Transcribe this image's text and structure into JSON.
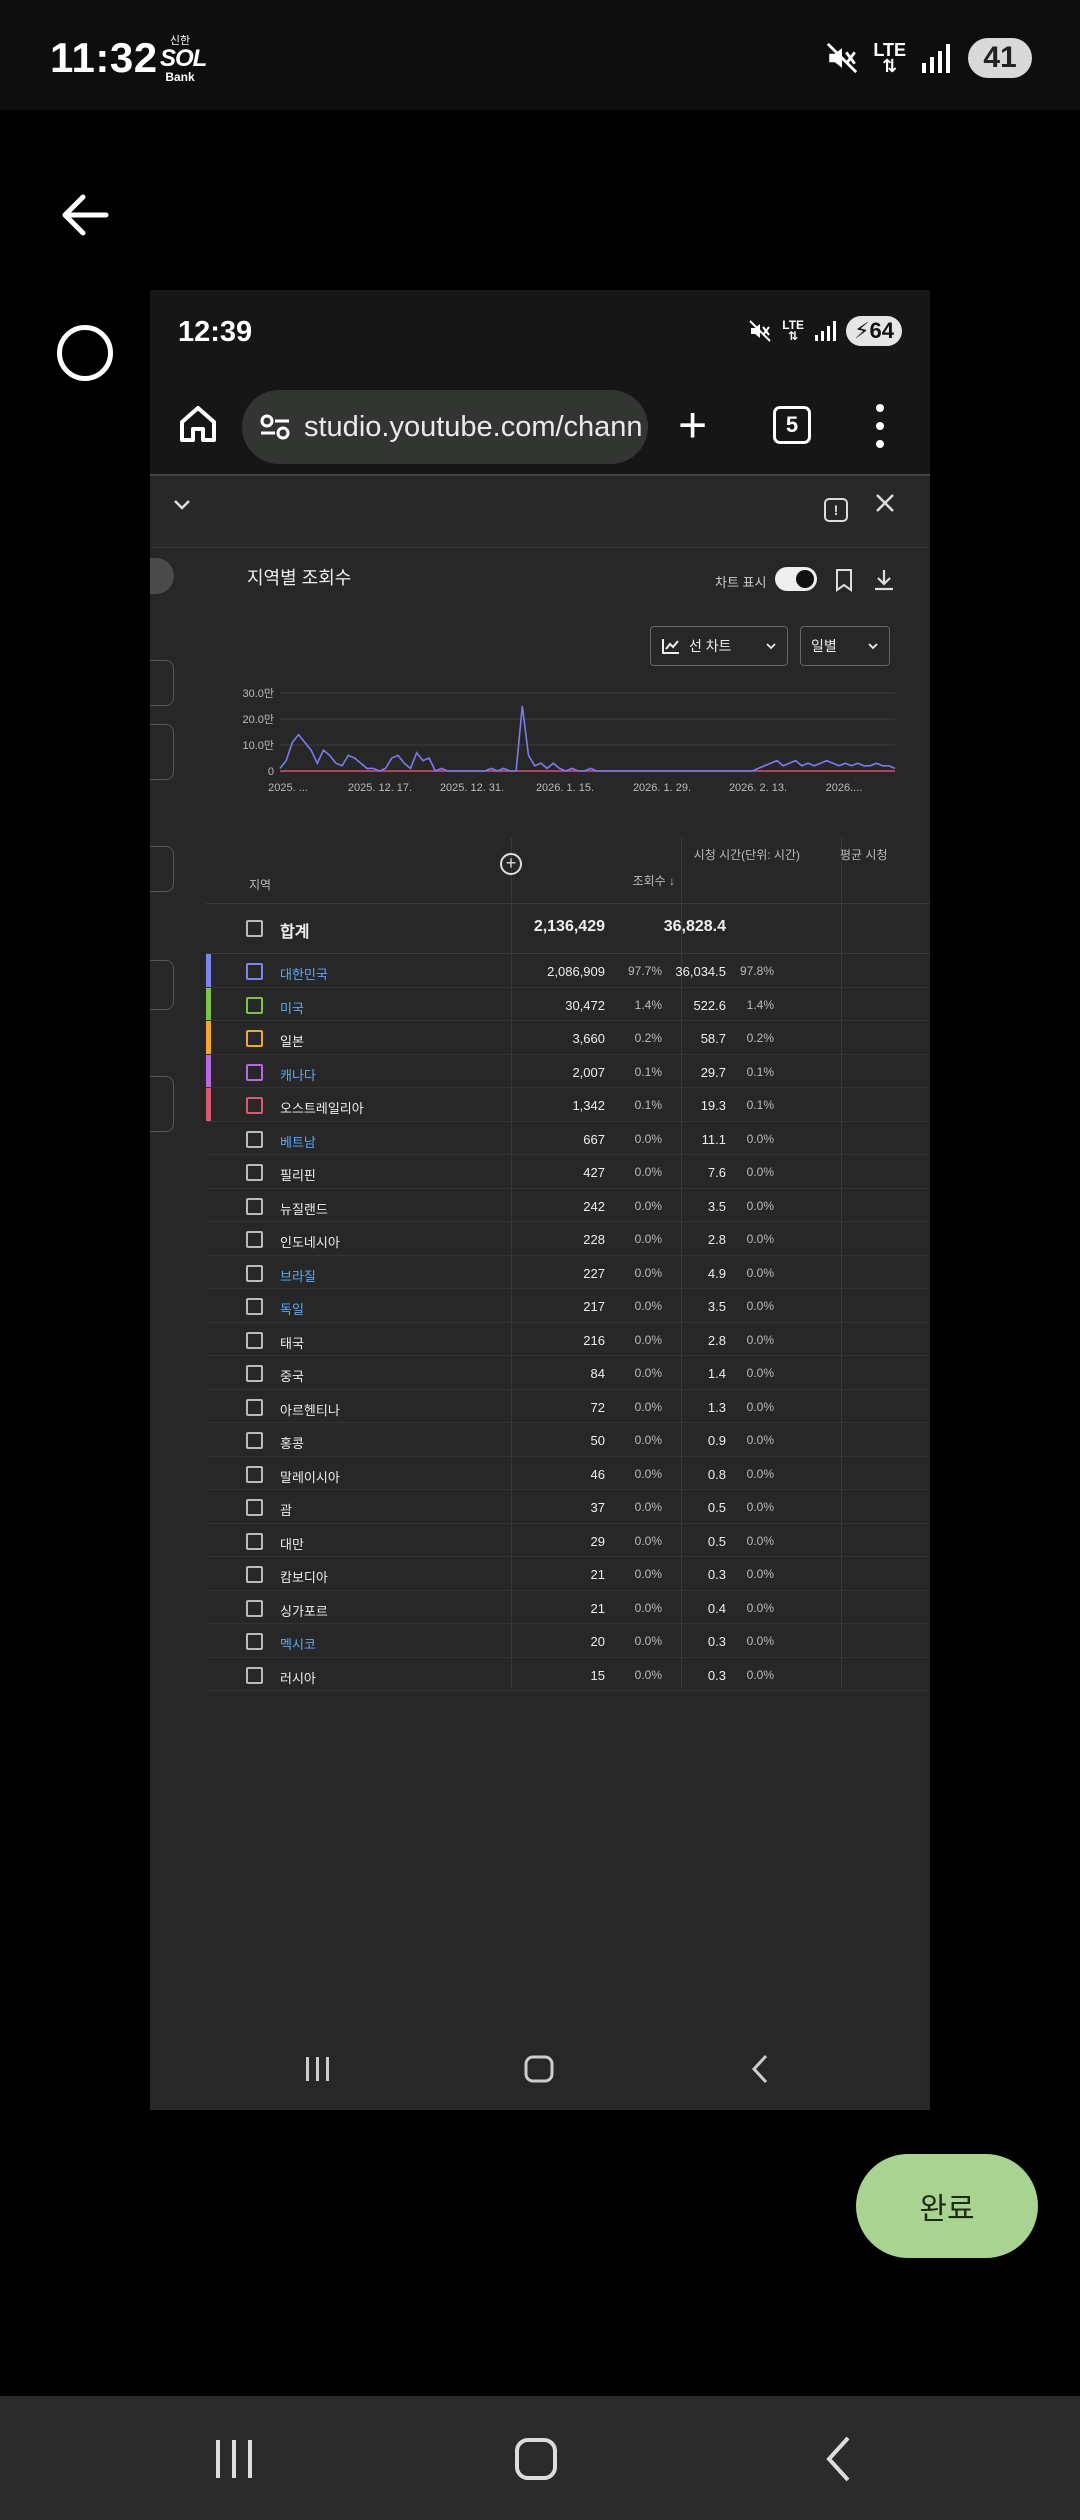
{
  "outer_status": {
    "time": "11:32",
    "app_badge_top": "신한",
    "app_badge_main": "SOL",
    "app_badge_sub": "Bank",
    "network": "LTE",
    "battery": "41"
  },
  "inner_status": {
    "time": "12:39",
    "network": "LTE",
    "battery": "64"
  },
  "browser": {
    "url": "studio.youtube.com/chann",
    "tab_count": "5"
  },
  "chart": {
    "title": "지역별 조회수",
    "toggle_label": "차트 표시",
    "chart_type_dropdown": "선 차트",
    "interval_dropdown": "일별"
  },
  "chart_data": {
    "type": "line",
    "y_ticks": [
      "30.0만",
      "20.0만",
      "10.0만",
      "0"
    ],
    "x_ticks": [
      "2025. ...",
      "2025. 12. 17.",
      "2025. 12. 31.",
      "2026. 1. 15.",
      "2026. 1. 29.",
      "2026. 2. 13.",
      "2026...."
    ],
    "ylim": [
      0,
      300000
    ],
    "series": [
      {
        "color": "#7b7bf0",
        "values": [
          10000,
          40000,
          110000,
          140000,
          110000,
          80000,
          30000,
          80000,
          60000,
          30000,
          20000,
          60000,
          50000,
          30000,
          10000,
          10000,
          0,
          10000,
          50000,
          60000,
          30000,
          10000,
          70000,
          40000,
          50000,
          0,
          10000,
          0,
          0,
          0,
          0,
          0,
          0,
          0,
          10000,
          0,
          10000,
          0,
          0,
          250000,
          60000,
          20000,
          30000,
          10000,
          30000,
          10000,
          0,
          10000,
          0,
          0,
          10000,
          0,
          0,
          0,
          0,
          0,
          0,
          0,
          0,
          0,
          0,
          0,
          0,
          0,
          0,
          0,
          0,
          0,
          0,
          0,
          0,
          0,
          0,
          0,
          0,
          0,
          0,
          10000,
          20000,
          30000,
          40000,
          20000,
          30000,
          40000,
          20000,
          30000,
          20000,
          30000,
          40000,
          30000,
          20000,
          30000,
          20000,
          30000,
          20000,
          20000,
          30000,
          20000,
          20000,
          10000
        ]
      },
      {
        "color": "#d05472",
        "values": [
          0,
          0,
          0,
          0,
          0,
          0,
          0,
          0,
          0,
          0,
          0,
          0,
          0,
          0,
          0,
          0,
          0,
          0,
          0,
          0,
          0,
          0,
          0,
          0,
          0,
          0,
          0,
          0,
          0,
          0,
          0,
          0,
          0,
          0,
          0,
          0,
          0,
          0,
          0,
          0,
          0,
          0,
          0,
          0,
          0,
          0,
          0,
          0,
          0,
          0,
          0,
          0,
          0,
          0,
          0,
          0,
          0,
          0,
          0,
          0,
          0,
          0,
          0,
          0,
          0,
          0,
          0,
          0,
          0,
          0,
          0,
          0,
          0,
          0,
          0,
          0,
          0,
          0,
          0,
          0,
          0,
          0,
          0,
          0,
          0,
          0,
          0,
          0,
          0,
          0,
          0,
          0,
          0,
          0,
          0,
          0,
          0,
          0,
          0,
          0
        ]
      }
    ]
  },
  "table": {
    "headers": {
      "region": "지역",
      "views": "조회수",
      "watch_time": "시청 시간(단위: 시간)",
      "avg": "평균 시청"
    },
    "total": {
      "label": "합계",
      "views": "2,136,429",
      "watch": "36,828.4"
    },
    "rows": [
      {
        "name": "대한민국",
        "views": "2,086,909",
        "vp": "97.7%",
        "watch": "36,034.5",
        "wp": "97.8%",
        "link": true,
        "color": "#7b86f0"
      },
      {
        "name": "미국",
        "views": "30,472",
        "vp": "1.4%",
        "watch": "522.6",
        "wp": "1.4%",
        "link": true,
        "color": "#7dc24a"
      },
      {
        "name": "일본",
        "views": "3,660",
        "vp": "0.2%",
        "watch": "58.7",
        "wp": "0.2%",
        "link": false,
        "color": "#f0a632"
      },
      {
        "name": "캐나다",
        "views": "2,007",
        "vp": "0.1%",
        "watch": "29.7",
        "wp": "0.1%",
        "link": true,
        "color": "#b86ae0"
      },
      {
        "name": "오스트레일리아",
        "views": "1,342",
        "vp": "0.1%",
        "watch": "19.3",
        "wp": "0.1%",
        "link": false,
        "color": "#d65a74"
      },
      {
        "name": "베트남",
        "views": "667",
        "vp": "0.0%",
        "watch": "11.1",
        "wp": "0.0%",
        "link": true,
        "color": ""
      },
      {
        "name": "필리핀",
        "views": "427",
        "vp": "0.0%",
        "watch": "7.6",
        "wp": "0.0%",
        "link": false,
        "color": ""
      },
      {
        "name": "뉴질랜드",
        "views": "242",
        "vp": "0.0%",
        "watch": "3.5",
        "wp": "0.0%",
        "link": false,
        "color": ""
      },
      {
        "name": "인도네시아",
        "views": "228",
        "vp": "0.0%",
        "watch": "2.8",
        "wp": "0.0%",
        "link": false,
        "color": ""
      },
      {
        "name": "브라질",
        "views": "227",
        "vp": "0.0%",
        "watch": "4.9",
        "wp": "0.0%",
        "link": true,
        "color": ""
      },
      {
        "name": "독일",
        "views": "217",
        "vp": "0.0%",
        "watch": "3.5",
        "wp": "0.0%",
        "link": true,
        "color": ""
      },
      {
        "name": "태국",
        "views": "216",
        "vp": "0.0%",
        "watch": "2.8",
        "wp": "0.0%",
        "link": false,
        "color": ""
      },
      {
        "name": "중국",
        "views": "84",
        "vp": "0.0%",
        "watch": "1.4",
        "wp": "0.0%",
        "link": false,
        "color": ""
      },
      {
        "name": "아르헨티나",
        "views": "72",
        "vp": "0.0%",
        "watch": "1.3",
        "wp": "0.0%",
        "link": false,
        "color": ""
      },
      {
        "name": "홍콩",
        "views": "50",
        "vp": "0.0%",
        "watch": "0.9",
        "wp": "0.0%",
        "link": false,
        "color": ""
      },
      {
        "name": "말레이시아",
        "views": "46",
        "vp": "0.0%",
        "watch": "0.8",
        "wp": "0.0%",
        "link": false,
        "color": ""
      },
      {
        "name": "괌",
        "views": "37",
        "vp": "0.0%",
        "watch": "0.5",
        "wp": "0.0%",
        "link": false,
        "color": ""
      },
      {
        "name": "대만",
        "views": "29",
        "vp": "0.0%",
        "watch": "0.5",
        "wp": "0.0%",
        "link": false,
        "color": ""
      },
      {
        "name": "캄보디아",
        "views": "21",
        "vp": "0.0%",
        "watch": "0.3",
        "wp": "0.0%",
        "link": false,
        "color": ""
      },
      {
        "name": "싱가포르",
        "views": "21",
        "vp": "0.0%",
        "watch": "0.4",
        "wp": "0.0%",
        "link": false,
        "color": ""
      },
      {
        "name": "멕시코",
        "views": "20",
        "vp": "0.0%",
        "watch": "0.3",
        "wp": "0.0%",
        "link": true,
        "color": ""
      },
      {
        "name": "러시아",
        "views": "15",
        "vp": "0.0%",
        "watch": "0.3",
        "wp": "0.0%",
        "link": false,
        "color": ""
      }
    ]
  },
  "done_button": "완료"
}
